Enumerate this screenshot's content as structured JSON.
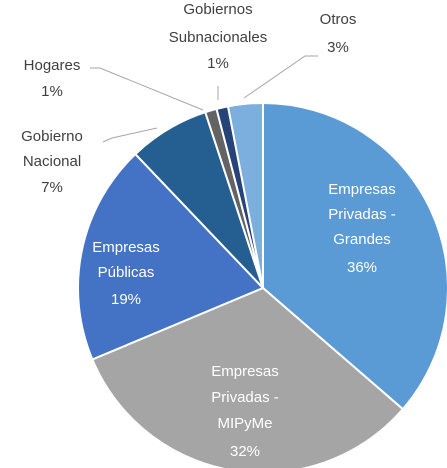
{
  "chart_data": {
    "type": "pie",
    "categories": [
      "Empresas Privadas - Grandes",
      "Empresas Privadas - MIPyMe",
      "Empresas Públicas",
      "Gobierno Nacional",
      "Hogares",
      "Gobiernos Subnacionales",
      "Otros"
    ],
    "values": [
      36,
      32,
      19,
      7,
      1,
      1,
      3
    ],
    "value_labels": [
      "36%",
      "32%",
      "19%",
      "7%",
      "1%",
      "1%",
      "3%"
    ],
    "colors": [
      "#5b9bd5",
      "#a5a5a5",
      "#4472c4",
      "#255e91",
      "#636363",
      "#264478",
      "#7cafdd"
    ]
  }
}
